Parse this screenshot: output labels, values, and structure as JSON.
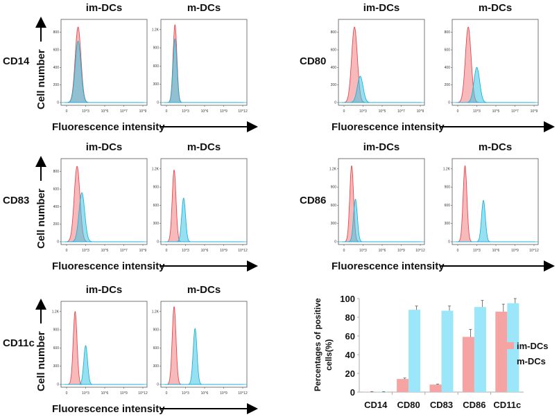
{
  "colors": {
    "im_fill": "#f07f7f",
    "im_line": "#e8474f",
    "m_fill": "#3fc6e6",
    "m_line": "#1fb2d8",
    "bar_im": "#f5a3a3",
    "bar_m": "#9be6f8"
  },
  "common": {
    "im_title": "im-DCs",
    "m_title": "m-DCs",
    "ylabel": "Cell number",
    "xlabel": "Fluorescence intensity"
  },
  "axes": {
    "A": {
      "yticks": [
        "0",
        "200",
        "400",
        "600",
        "800"
      ],
      "yvals": [
        0,
        200,
        400,
        600,
        800
      ],
      "ymax": 900,
      "xticks": [
        "0",
        "10^3",
        "10^5",
        "10^7",
        "10^9"
      ],
      "x_scale": "biexponential"
    },
    "B": {
      "yticks": [
        "0",
        "300",
        "600",
        "900",
        "1.2K"
      ],
      "yvals": [
        0,
        300,
        600,
        900,
        1200
      ],
      "ymax": 1300,
      "xticks": [
        "0",
        "10^3",
        "10^6",
        "10^9",
        "10^12"
      ],
      "x_scale": "biexponential"
    }
  },
  "histograms": [
    {
      "marker": "CD14",
      "im": {
        "axis": "A",
        "im_peak": 160,
        "im_count": 860,
        "m_peak": 160,
        "m_count": 700
      },
      "m": {
        "axis": "B",
        "im_peak": 22,
        "im_count": 1280,
        "m_peak": 22,
        "m_count": 1050
      }
    },
    {
      "marker": "CD80",
      "im": {
        "axis": "A",
        "im_peak": 126,
        "im_count": 860,
        "m_peak": 500,
        "m_count": 300
      },
      "m": {
        "axis": "A",
        "im_peak": 126,
        "im_count": 860,
        "m_peak": 1000,
        "m_count": 400
      }
    },
    {
      "marker": "CD83",
      "im": {
        "axis": "A",
        "im_peak": 126,
        "im_count": 860,
        "m_peak": 400,
        "m_count": 560
      },
      "m": {
        "axis": "B",
        "im_peak": 16,
        "im_count": 1180,
        "m_peak": 500,
        "m_count": 720
      }
    },
    {
      "marker": "CD86",
      "im": {
        "axis": "B",
        "im_peak": 16,
        "im_count": 1250,
        "m_peak": 63,
        "m_count": 700
      },
      "m": {
        "axis": "B",
        "im_peak": 14,
        "im_count": 1250,
        "m_peak": 11000,
        "m_count": 680
      }
    },
    {
      "marker": "CD11c",
      "im": {
        "axis": "B",
        "im_peak": 22,
        "im_count": 1200,
        "m_peak": 1000,
        "m_count": 640
      },
      "m": {
        "axis": "B",
        "im_peak": 16,
        "im_count": 1280,
        "m_peak": 31600,
        "m_count": 920
      }
    }
  ],
  "chart_data": {
    "type": "bar",
    "categories": [
      "CD14",
      "CD80",
      "CD83",
      "CD86",
      "CD11c"
    ],
    "series": [
      {
        "name": "im-DCs",
        "values": [
          0.3,
          14,
          8,
          59,
          86
        ],
        "errors": [
          0.2,
          1,
          0.5,
          8,
          8
        ]
      },
      {
        "name": "m-DCs",
        "values": [
          0.3,
          88,
          87,
          91,
          95
        ],
        "errors": [
          0.2,
          4,
          5,
          7,
          5
        ]
      }
    ],
    "ylabel_line1": "Percentages of positive",
    "ylabel_line2": "cells(%)",
    "yticks": [
      "0",
      "20",
      "40",
      "60",
      "80",
      "100"
    ],
    "ylim": [
      0,
      100
    ],
    "legend": "right"
  }
}
